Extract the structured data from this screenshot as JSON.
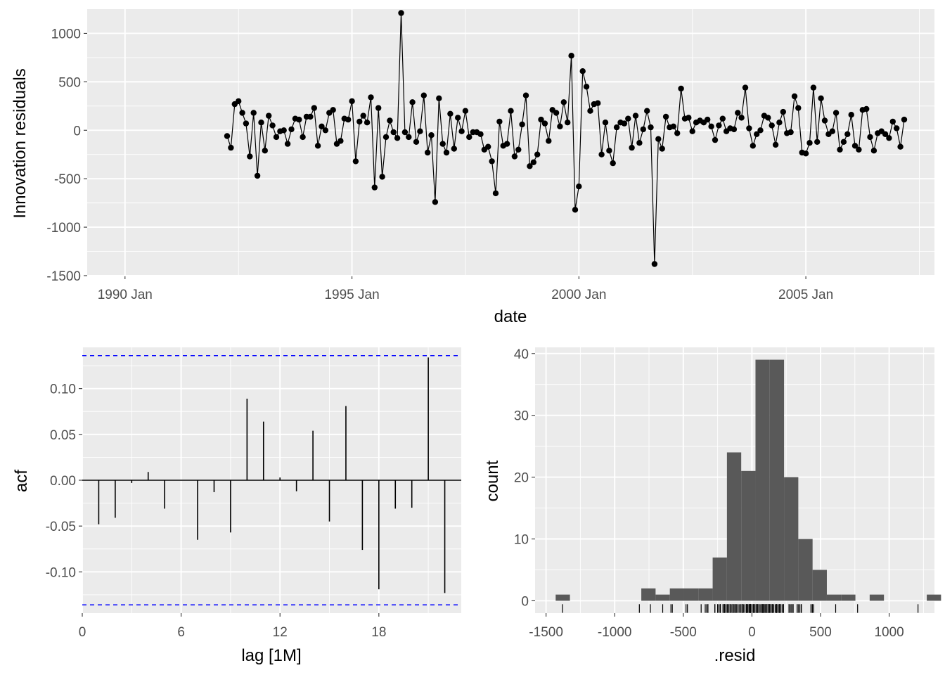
{
  "chart_data": [
    {
      "type": "line",
      "xlabel": "date",
      "ylabel": "Innovation residuals",
      "x_ticks": [
        "1990 Jan",
        "1995 Jan",
        "2000 Jan",
        "2005 Jan"
      ],
      "y_ticks": [
        "-1500",
        "-1000",
        "-500",
        "0",
        "500",
        "1000"
      ],
      "xlim": [
        "1989-03",
        "2007-11"
      ],
      "ylim": [
        -1500,
        1250
      ],
      "start_month": "1992-04",
      "values": [
        -60,
        -180,
        270,
        300,
        180,
        70,
        -270,
        180,
        -470,
        80,
        -210,
        150,
        50,
        -70,
        -10,
        0,
        -140,
        10,
        120,
        110,
        -70,
        140,
        140,
        230,
        -160,
        40,
        0,
        180,
        210,
        -140,
        -110,
        120,
        110,
        300,
        -320,
        90,
        150,
        80,
        340,
        -590,
        230,
        -480,
        -70,
        100,
        -20,
        -80,
        1210,
        -20,
        -70,
        290,
        -120,
        -10,
        360,
        -230,
        -50,
        -740,
        330,
        -140,
        -230,
        170,
        -190,
        130,
        -10,
        200,
        -70,
        -20,
        -20,
        -40,
        -200,
        -170,
        -320,
        -650,
        90,
        -160,
        -140,
        200,
        -270,
        -200,
        60,
        360,
        -370,
        -330,
        -250,
        110,
        70,
        -110,
        210,
        180,
        40,
        290,
        80,
        770,
        -820,
        -580,
        610,
        450,
        200,
        270,
        280,
        -250,
        80,
        -210,
        -340,
        30,
        80,
        70,
        120,
        -180,
        150,
        -130,
        10,
        200,
        30,
        -1380,
        -90,
        -190,
        140,
        30,
        40,
        -30,
        430,
        120,
        130,
        -10,
        80,
        100,
        80,
        110,
        40,
        -100,
        50,
        120,
        -10,
        20,
        10,
        180,
        130,
        440,
        20,
        -160,
        -40,
        0,
        150,
        130,
        50,
        -150,
        80,
        190,
        -30,
        -20,
        350,
        230,
        -230,
        -240,
        -130,
        440,
        -120,
        330,
        100,
        -40,
        -10,
        180,
        -200,
        -120,
        -40,
        160,
        -160,
        -200,
        210,
        220,
        -70,
        -210,
        -30,
        -10,
        -40,
        -80,
        90,
        20,
        -170,
        110
      ]
    },
    {
      "type": "bar",
      "xlabel": "lag [1M]",
      "ylabel": "acf",
      "x_ticks": [
        "0",
        "6",
        "12",
        "18"
      ],
      "y_ticks": [
        "-0.10",
        "-0.05",
        "0.00",
        "0.05",
        "0.10"
      ],
      "lags": [
        1,
        2,
        3,
        4,
        5,
        6,
        7,
        8,
        9,
        10,
        11,
        12,
        13,
        14,
        15,
        16,
        17,
        18,
        19,
        20,
        21,
        22
      ],
      "values": [
        -0.048,
        -0.041,
        -0.003,
        0.009,
        -0.031,
        0.0,
        -0.065,
        -0.013,
        -0.057,
        0.089,
        0.064,
        0.003,
        -0.012,
        0.054,
        -0.045,
        0.081,
        -0.076,
        -0.119,
        -0.031,
        -0.03,
        0.134,
        -0.123
      ],
      "significance_bound": 0.136,
      "xlim": [
        0,
        23
      ],
      "ylim": [
        -0.145,
        0.145
      ]
    },
    {
      "type": "histogram",
      "xlabel": ".resid",
      "ylabel": "count",
      "x_ticks": [
        "-1500",
        "-1000",
        "-500",
        "0",
        "500",
        "1000"
      ],
      "y_ticks": [
        "0",
        "10",
        "20",
        "30",
        "40"
      ],
      "bin_width": 104,
      "first_bin_left": -1430,
      "counts": [
        1,
        0,
        0,
        0,
        0,
        0,
        2,
        1,
        2,
        2,
        2,
        7,
        24,
        21,
        39,
        39,
        20,
        10,
        5,
        1,
        1,
        0,
        1,
        0,
        0,
        0,
        1
      ],
      "xlim": [
        -1580,
        1330
      ],
      "ylim": [
        -2,
        41
      ]
    }
  ]
}
